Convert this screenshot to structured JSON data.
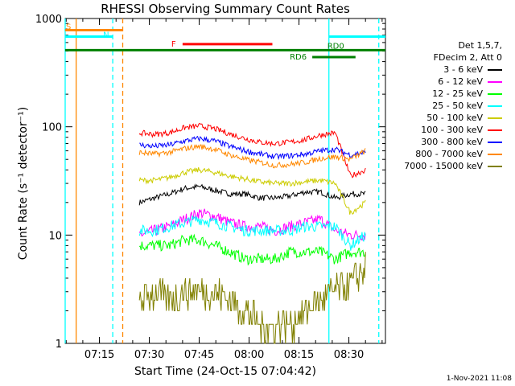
{
  "chart_data": {
    "type": "line",
    "title": "RHESSI Observing Summary Count Rates",
    "xlabel": "Start Time (24-Oct-15 07:04:42)",
    "ylabel": "Count Rate (s⁻¹ detector⁻¹)",
    "yscale": "log",
    "ylim": [
      1,
      1000
    ],
    "xlim_minutes": [
      "07:04:42",
      "08:41:00"
    ],
    "x_ticks": [
      "07:15",
      "07:30",
      "07:45",
      "08:00",
      "08:15",
      "08:30"
    ],
    "y_ticks": [
      "1",
      "10",
      "100",
      "1000"
    ],
    "legend_header": [
      "Det 1,5,7,",
      "FDecim 2, Att 0"
    ],
    "series": [
      {
        "name": "3 - 6 keV",
        "color": "#000000",
        "start": "07:27",
        "end": "08:35",
        "values": [
          20,
          22,
          24,
          27,
          28,
          26,
          24,
          24,
          22,
          22,
          23,
          25,
          25,
          22,
          24,
          24
        ]
      },
      {
        "name": "6 - 12 keV",
        "color": "#ff00ff",
        "start": "07:27",
        "end": "08:35",
        "values": [
          10,
          11,
          12,
          14,
          16,
          15,
          13,
          12,
          12,
          11,
          12,
          13,
          14,
          11,
          10,
          10
        ]
      },
      {
        "name": "12 - 25 keV",
        "color": "#00ff00",
        "start": "07:27",
        "end": "08:35",
        "values": [
          8,
          8,
          8,
          9,
          9,
          8,
          7,
          6,
          6,
          6,
          7,
          7,
          7,
          6,
          7,
          7
        ]
      },
      {
        "name": "25 - 50 keV",
        "color": "#00ffff",
        "start": "07:27",
        "end": "08:35",
        "values": [
          11,
          11,
          12,
          13,
          14,
          13,
          12,
          11,
          11,
          11,
          11,
          12,
          12,
          12,
          8,
          10
        ]
      },
      {
        "name": "50 - 100 keV",
        "color": "#cccc00",
        "start": "07:27",
        "end": "08:35",
        "values": [
          32,
          32,
          34,
          38,
          40,
          38,
          35,
          33,
          31,
          30,
          30,
          31,
          32,
          30,
          16,
          20
        ]
      },
      {
        "name": "100 - 300 keV",
        "color": "#ff0000",
        "start": "07:27",
        "end": "08:35",
        "values": [
          88,
          85,
          88,
          98,
          102,
          96,
          86,
          78,
          72,
          70,
          72,
          76,
          84,
          88,
          35,
          40
        ]
      },
      {
        "name": "300 - 800 keV",
        "color": "#0000ff",
        "start": "07:27",
        "end": "08:35",
        "values": [
          68,
          66,
          68,
          74,
          78,
          74,
          66,
          60,
          56,
          53,
          54,
          56,
          60,
          62,
          55,
          58
        ]
      },
      {
        "name": "800 - 7000 keV",
        "color": "#ff8800",
        "start": "07:27",
        "end": "08:35",
        "values": [
          58,
          56,
          58,
          63,
          66,
          62,
          55,
          50,
          47,
          44,
          45,
          47,
          51,
          53,
          50,
          60
        ]
      },
      {
        "name": "7000 - 15000 keV",
        "color": "#808000",
        "start": "07:27",
        "end": "08:35",
        "values": [
          2.5,
          3,
          2.5,
          3,
          3,
          3,
          2.5,
          2,
          1.5,
          1.5,
          1.5,
          2,
          2.5,
          3,
          3.5,
          5
        ]
      }
    ],
    "flags": [
      {
        "label": "S",
        "color": "#ff8800",
        "start": "07:04:42",
        "end": "07:22:00",
        "level": 780
      },
      {
        "label": "N",
        "color": "#00ffff",
        "start": "07:04:42",
        "end": "07:19:00",
        "level": 680
      },
      {
        "label": "N",
        "color": "#00ffff",
        "start": "08:24:00",
        "end": "08:41:00",
        "level": 680
      },
      {
        "label": "F",
        "color": "#ff0000",
        "start": "07:40:00",
        "end": "08:07:00",
        "level": 580
      },
      {
        "label": "RD0",
        "color": "#008000",
        "start": "07:04:42",
        "end": "08:41:00",
        "level": 510
      },
      {
        "label": "RD6",
        "color": "#008000",
        "start": "08:19:00",
        "end": "08:32:00",
        "level": 440
      }
    ],
    "vertical_lines": [
      {
        "time": "07:08:00",
        "color": "#ff8800",
        "style": "solid"
      },
      {
        "time": "07:04:42",
        "color": "#00ffff",
        "style": "solid"
      },
      {
        "time": "07:19:00",
        "color": "#00ffff",
        "style": "dashed"
      },
      {
        "time": "07:22:00",
        "color": "#ff8800",
        "style": "dashed"
      },
      {
        "time": "08:24:00",
        "color": "#00ffff",
        "style": "solid"
      },
      {
        "time": "08:39:00",
        "color": "#00ffff",
        "style": "dashed"
      }
    ]
  },
  "footer": {
    "timestamp": "1-Nov-2021 11:08"
  }
}
